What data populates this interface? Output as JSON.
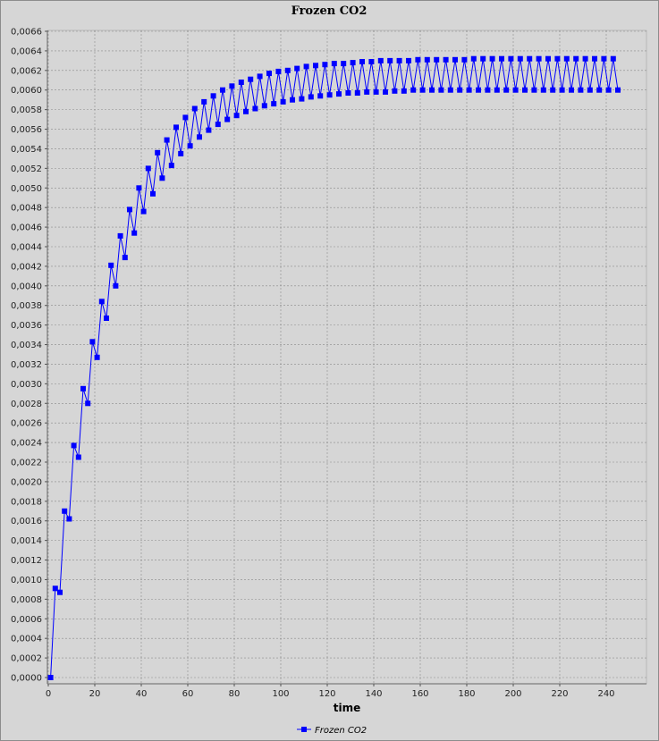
{
  "chart_data": {
    "type": "line",
    "title": "Frozen CO2",
    "xlabel": "time",
    "ylabel": "",
    "xlim": [
      0,
      250
    ],
    "ylim": [
      0,
      0.0066
    ],
    "x_ticks": [
      "0",
      "20",
      "40",
      "60",
      "80",
      "100",
      "120",
      "140",
      "160",
      "180",
      "200",
      "220",
      "240"
    ],
    "y_ticks": [
      "0,0000",
      "0,0002",
      "0,0004",
      "0,0006",
      "0,0008",
      "0,0010",
      "0,0012",
      "0,0014",
      "0,0016",
      "0,0018",
      "0,0020",
      "0,0022",
      "0,0024",
      "0,0026",
      "0,0028",
      "0,0030",
      "0,0032",
      "0,0034",
      "0,0036",
      "0,0038",
      "0,0040",
      "0,0042",
      "0,0044",
      "0,0046",
      "0,0048",
      "0,0050",
      "0,0052",
      "0,0054",
      "0,0056",
      "0,0058",
      "0,0060",
      "0,0062",
      "0,0064",
      "0,0066"
    ],
    "grid": true,
    "legend_position": "bottom-center",
    "series": [
      {
        "name": "Frozen CO2",
        "color": "#0000ff",
        "marker": "square",
        "x": [
          1,
          3,
          5,
          7,
          9,
          11,
          13,
          15,
          17,
          19,
          21,
          23,
          25,
          27,
          29,
          31,
          33,
          35,
          37,
          39,
          41,
          43,
          45,
          47,
          49,
          51,
          53,
          55,
          57,
          59,
          61,
          63,
          65,
          67,
          69,
          71,
          73,
          75,
          77,
          79,
          81,
          83,
          85,
          87,
          89,
          91,
          93,
          95,
          97,
          99,
          101,
          103,
          105,
          107,
          109,
          111,
          113,
          115,
          117,
          119,
          121,
          123,
          125,
          127,
          129,
          131,
          133,
          135,
          137,
          139,
          141,
          143,
          145,
          147,
          149,
          151,
          153,
          155,
          157,
          159,
          161,
          163,
          165,
          167,
          169,
          171,
          173,
          175,
          177,
          179,
          181,
          183,
          185,
          187,
          189,
          191,
          193,
          195,
          197,
          199,
          201,
          203,
          205,
          207,
          209,
          211,
          213,
          215,
          217,
          219,
          221,
          223,
          225,
          227,
          229,
          231,
          233,
          235,
          237,
          239,
          241,
          243,
          245
        ],
        "y": [
          0.0,
          0.00091,
          0.00087,
          0.0017,
          0.00162,
          0.00237,
          0.00225,
          0.00295,
          0.0028,
          0.00343,
          0.00327,
          0.00384,
          0.00367,
          0.00421,
          0.004,
          0.00451,
          0.00429,
          0.00478,
          0.00454,
          0.005,
          0.00476,
          0.0052,
          0.00494,
          0.00536,
          0.0051,
          0.00549,
          0.00523,
          0.00562,
          0.00535,
          0.00572,
          0.00543,
          0.00581,
          0.00552,
          0.00588,
          0.00559,
          0.00594,
          0.00565,
          0.006,
          0.0057,
          0.00604,
          0.00574,
          0.00608,
          0.00578,
          0.00611,
          0.00581,
          0.00614,
          0.00584,
          0.00617,
          0.00586,
          0.00619,
          0.00588,
          0.0062,
          0.0059,
          0.00622,
          0.00591,
          0.00624,
          0.00593,
          0.00625,
          0.00594,
          0.00626,
          0.00595,
          0.00627,
          0.00596,
          0.00627,
          0.00597,
          0.00628,
          0.00597,
          0.00629,
          0.00598,
          0.00629,
          0.00598,
          0.0063,
          0.00598,
          0.0063,
          0.00599,
          0.0063,
          0.00599,
          0.0063,
          0.006,
          0.00631,
          0.006,
          0.00631,
          0.006,
          0.00631,
          0.006,
          0.00631,
          0.006,
          0.00631,
          0.006,
          0.00631,
          0.006,
          0.00632,
          0.006,
          0.00632,
          0.006,
          0.00632,
          0.006,
          0.00632,
          0.006,
          0.00632,
          0.006,
          0.00632,
          0.006,
          0.00632,
          0.006,
          0.00632,
          0.006,
          0.00632,
          0.006,
          0.00632,
          0.006,
          0.00632,
          0.006,
          0.00632,
          0.006,
          0.00632,
          0.006,
          0.00632,
          0.006,
          0.00632,
          0.006,
          0.00632,
          0.006
        ]
      }
    ]
  }
}
